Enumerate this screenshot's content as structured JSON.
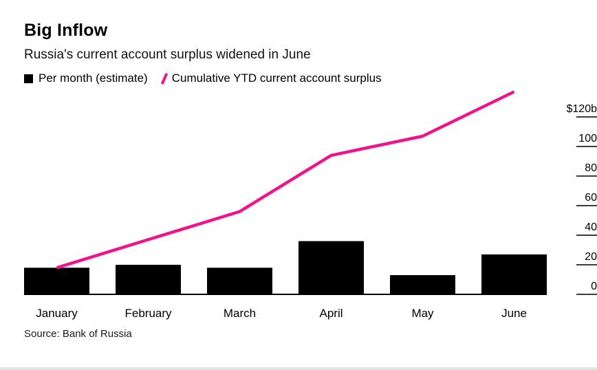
{
  "header": {
    "title": "Big Inflow",
    "subtitle": "Russia's current account surplus widened in June"
  },
  "legend": [
    {
      "swatch": "square",
      "label": "Per month (estimate)",
      "color": "#000000"
    },
    {
      "swatch": "slash",
      "label": "Cumulative YTD current account surplus",
      "color": "#f0148c"
    }
  ],
  "source": "Source: Bank of Russia",
  "colors": {
    "bar": "#000000",
    "line": "#f0148c",
    "axis": "#000000",
    "tick": "#3c3c3c",
    "text": "#000000"
  },
  "chart_data": {
    "type": "bar",
    "subtype": "bar-with-line-overlay",
    "categories": [
      "January",
      "February",
      "March",
      "April",
      "May",
      "June"
    ],
    "series": [
      {
        "name": "Per month (estimate)",
        "type": "bar",
        "color": "#000000",
        "values": [
          18,
          20,
          18,
          36,
          13,
          27
        ]
      },
      {
        "name": "Cumulative YTD current account surplus",
        "type": "line",
        "color": "#f0148c",
        "values": [
          18,
          37,
          56,
          94,
          107,
          137
        ]
      }
    ],
    "title": "Big Inflow",
    "subtitle": "Russia's current account surplus widened in June",
    "xlabel": "",
    "ylabel": "",
    "unit": "$b",
    "ylim": [
      0,
      140
    ],
    "yticks": [
      {
        "value": 120,
        "label": "$120b"
      },
      {
        "value": 100,
        "label": "100"
      },
      {
        "value": 80,
        "label": "80"
      },
      {
        "value": 60,
        "label": "60"
      },
      {
        "value": 40,
        "label": "40"
      },
      {
        "value": 20,
        "label": "20"
      },
      {
        "value": 0,
        "label": "0"
      }
    ],
    "grid": false,
    "legend_position": "top",
    "y_axis_side": "right"
  }
}
